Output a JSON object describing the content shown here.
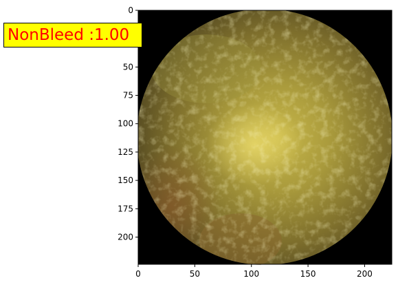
{
  "figure": {
    "prediction_label": "NonBleed :1.00",
    "label_bg_color": "#ffff00",
    "label_text_color": "#ff0000",
    "image_content": "circular capsule-endoscopy frame of yellow-green intestinal mucosa on black background"
  },
  "chart_data": {
    "type": "image",
    "title": "",
    "xlabel": "",
    "ylabel": "",
    "xlim": [
      0,
      224
    ],
    "ylim": [
      224,
      0
    ],
    "x_ticks": [
      "0",
      "50",
      "100",
      "150",
      "200"
    ],
    "y_ticks": [
      "0",
      "25",
      "50",
      "75",
      "100",
      "125",
      "150",
      "175",
      "200"
    ],
    "grid": false
  }
}
